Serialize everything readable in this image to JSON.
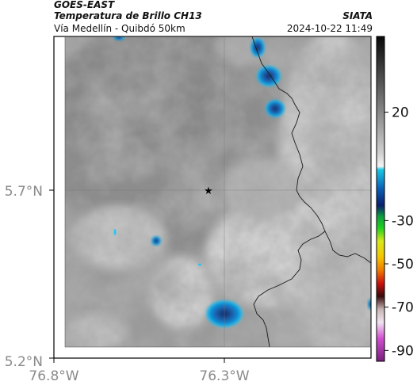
{
  "header": {
    "satellite": "GOES-EAST",
    "product": "Temperatura de Brillo CH13",
    "region": "Vía Medellín - Quibdó 50km",
    "agency": "SIATA",
    "datetime": "2024-10-22 11:49"
  },
  "axes": {
    "y_ticks": [
      "5.7°N",
      "5.2°N"
    ],
    "x_ticks": [
      "76.8°W",
      "76.3°W"
    ]
  },
  "colorbar": {
    "ticks": [
      "20",
      "-30",
      "-50",
      "-70",
      "-90"
    ],
    "tick_values": [
      20,
      -30,
      -50,
      -70,
      -90
    ],
    "range": [
      -95,
      55
    ]
  },
  "map": {
    "marker": "star-icon",
    "cold_color": "#0a8fd8",
    "warm_color": "#e8e8e8"
  }
}
